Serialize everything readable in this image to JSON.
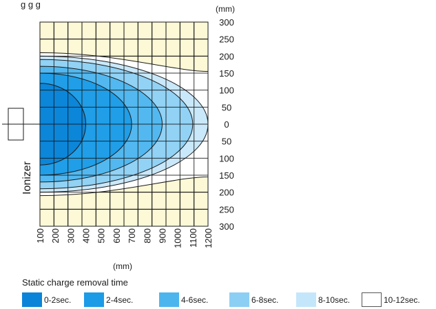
{
  "chart_data": {
    "type": "area",
    "title_partial": "g            g                g",
    "x_unit": "(mm)",
    "y_unit": "(mm)",
    "x_ticks": [
      "100",
      "200",
      "300",
      "400",
      "500",
      "600",
      "700",
      "800",
      "900",
      "1000",
      "1100",
      "1200"
    ],
    "y_ticks": [
      "300",
      "250",
      "200",
      "150",
      "100",
      "50",
      "0",
      "50",
      "100",
      "150",
      "200",
      "250",
      "300"
    ],
    "xlim": [
      100,
      1200
    ],
    "ylim": [
      -300,
      300
    ],
    "grid": true,
    "device_label": "Ionizer",
    "legend_title": "Static charge removal time",
    "legend": [
      {
        "label": "0-2sec.",
        "color": "#0a84d8"
      },
      {
        "label": "2-4sec.",
        "color": "#1c9be6"
      },
      {
        "label": "4-6sec.",
        "color": "#4db5ee"
      },
      {
        "label": "6-8sec.",
        "color": "#8ccff4"
      },
      {
        "label": "8-10sec.",
        "color": "#c4e6fa"
      },
      {
        "label": "10-12sec.",
        "color": "#ffffff"
      }
    ],
    "zones": [
      {
        "label": "10-12sec.",
        "reach_x": 1200,
        "half_width_start": 210,
        "half_width_at_tip": 155,
        "color": "#ffffff"
      },
      {
        "label": "8-10sec.",
        "reach_x": 1200,
        "half_width_start": 200,
        "half_width_at_tip": 0,
        "color": "#c4e6fa"
      },
      {
        "label": "6-8sec.",
        "reach_x": 1100,
        "half_width_start": 190,
        "half_width_at_tip": 0,
        "color": "#8ccff4"
      },
      {
        "label": "4-6sec.",
        "reach_x": 900,
        "half_width_start": 170,
        "half_width_at_tip": 0,
        "color": "#4db5ee"
      },
      {
        "label": "2-4sec.",
        "reach_x": 700,
        "half_width_start": 150,
        "half_width_at_tip": 0,
        "color": "#1c9be6"
      },
      {
        "label": "0-2sec.",
        "reach_x": 400,
        "half_width_start": 120,
        "half_width_at_tip": 0,
        "color": "#0a84d8"
      }
    ]
  }
}
